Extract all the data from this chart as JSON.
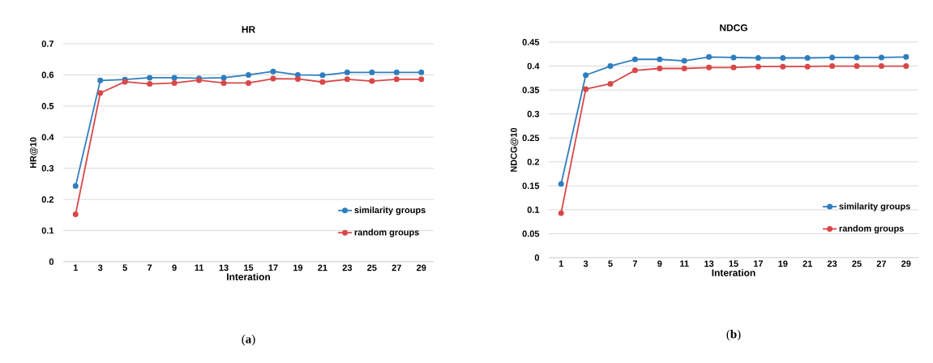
{
  "chart_data": [
    {
      "type": "line",
      "title": "HR",
      "xlabel": "Interation",
      "ylabel": "HR@10",
      "categories": [
        "1",
        "3",
        "5",
        "7",
        "9",
        "11",
        "13",
        "15",
        "17",
        "19",
        "21",
        "23",
        "25",
        "27",
        "29"
      ],
      "series": [
        {
          "name": "similarity groups",
          "color": "#2e7ebf",
          "values": [
            0.243,
            0.582,
            0.585,
            0.591,
            0.591,
            0.589,
            0.591,
            0.6,
            0.611,
            0.6,
            0.599,
            0.608,
            0.608,
            0.608,
            0.608
          ]
        },
        {
          "name": "random groups",
          "color": "#d94848",
          "values": [
            0.152,
            0.542,
            0.578,
            0.571,
            0.574,
            0.583,
            0.574,
            0.574,
            0.588,
            0.587,
            0.577,
            0.586,
            0.58,
            0.586,
            0.586
          ]
        }
      ],
      "ylim": [
        0,
        0.7
      ],
      "yticks": [
        0,
        0.1,
        0.2,
        0.3,
        0.4,
        0.5,
        0.6,
        0.7
      ],
      "grid": "y",
      "legend": "bottom right",
      "marker": "circle",
      "line_style": "solid",
      "annotations": [
        "(**a**)"
      ]
    },
    {
      "type": "line",
      "title": "NDCG",
      "xlabel": "Interation",
      "ylabel": "NDCG@10",
      "categories": [
        "1",
        "3",
        "5",
        "7",
        "9",
        "11",
        "13",
        "15",
        "17",
        "19",
        "21",
        "23",
        "25",
        "27",
        "29"
      ],
      "series": [
        {
          "name": "similarity groups",
          "color": "#2e7ebf",
          "values": [
            0.154,
            0.381,
            0.4,
            0.414,
            0.414,
            0.411,
            0.419,
            0.418,
            0.417,
            0.417,
            0.417,
            0.418,
            0.418,
            0.418,
            0.419
          ]
        },
        {
          "name": "random groups",
          "color": "#d94848",
          "values": [
            0.093,
            0.352,
            0.363,
            0.391,
            0.395,
            0.395,
            0.397,
            0.397,
            0.399,
            0.399,
            0.399,
            0.4,
            0.4,
            0.4,
            0.4
          ]
        }
      ],
      "ylim": [
        0,
        0.45
      ],
      "yticks": [
        0,
        0.05,
        0.1,
        0.15,
        0.2,
        0.25,
        0.3,
        0.35,
        0.4,
        0.45
      ],
      "grid": "y",
      "legend": "bottom right",
      "marker": "circle",
      "line_style": "solid",
      "annotations": [
        "(**b**)"
      ]
    }
  ]
}
